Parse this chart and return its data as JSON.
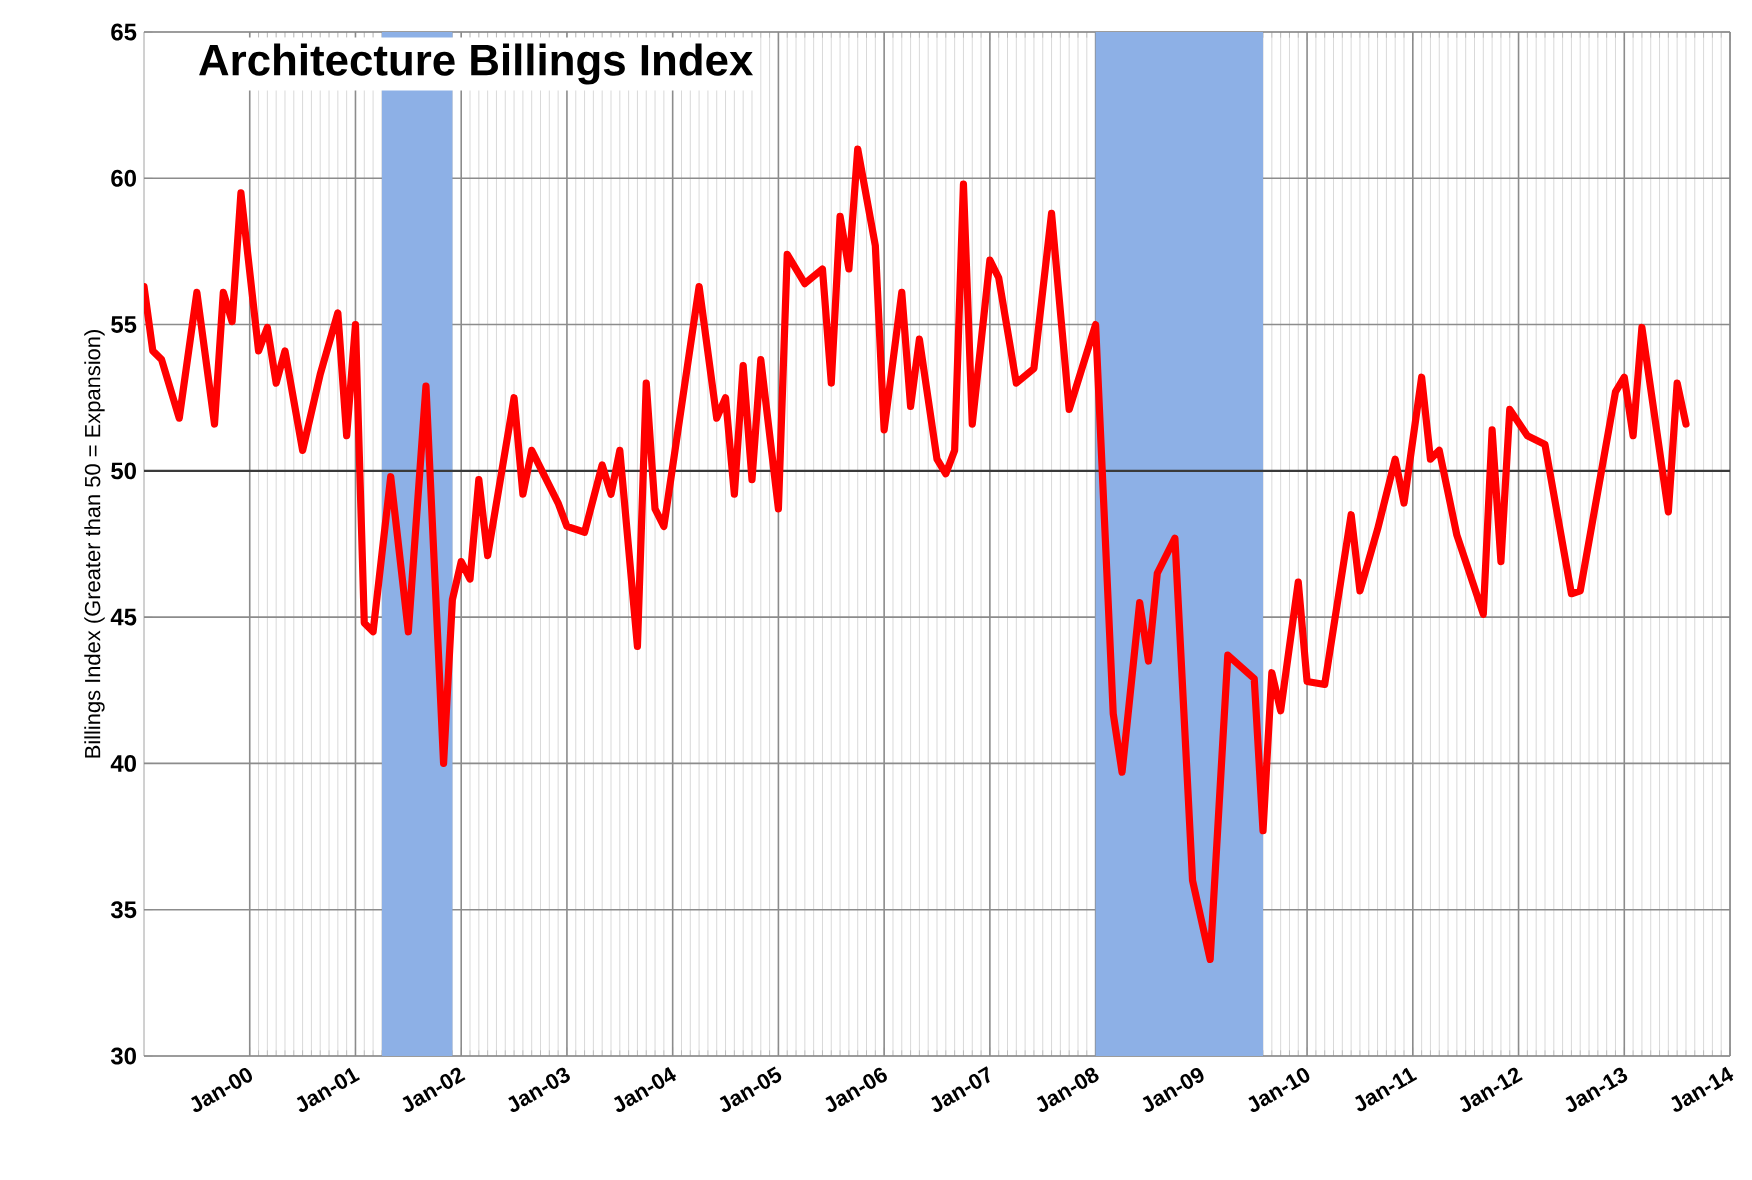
{
  "chart_data": {
    "type": "line",
    "title": "Architecture Billings Index",
    "ylabel": "Billings Index (Greater than 50 = Expansion)",
    "x": [
      "1999-01",
      "1999-02",
      "1999-03",
      "1999-05",
      "1999-07",
      "1999-09",
      "1999-10",
      "1999-11",
      "1999-12",
      "2000-02",
      "2000-03",
      "2000-04",
      "2000-05",
      "2000-07",
      "2000-09",
      "2000-11",
      "2000-12",
      "2001-01",
      "2001-02",
      "2001-03",
      "2001-05",
      "2001-07",
      "2001-09",
      "2001-11",
      "2001-12",
      "2002-01",
      "2002-02",
      "2002-03",
      "2002-04",
      "2002-07",
      "2002-08",
      "2002-09",
      "2002-12",
      "2003-01",
      "2003-03",
      "2003-05",
      "2003-06",
      "2003-07",
      "2003-09",
      "2003-10",
      "2003-11",
      "2003-12",
      "2004-04",
      "2004-06",
      "2004-07",
      "2004-08",
      "2004-09",
      "2004-10",
      "2004-11",
      "2005-01",
      "2005-02",
      "2005-04",
      "2005-06",
      "2005-07",
      "2005-08",
      "2005-09",
      "2005-10",
      "2005-12",
      "2006-01",
      "2006-03",
      "2006-04",
      "2006-05",
      "2006-07",
      "2006-08",
      "2006-09",
      "2006-10",
      "2006-11",
      "2007-01",
      "2007-02",
      "2007-04",
      "2007-06",
      "2007-08",
      "2007-10",
      "2008-01",
      "2008-03",
      "2008-04",
      "2008-06",
      "2008-07",
      "2008-08",
      "2008-10",
      "2008-12",
      "2009-02",
      "2009-04",
      "2009-07",
      "2009-08",
      "2009-09",
      "2009-10",
      "2009-12",
      "2010-01",
      "2010-03",
      "2010-06",
      "2010-07",
      "2010-09",
      "2010-11",
      "2010-12",
      "2011-02",
      "2011-03",
      "2011-04",
      "2011-06",
      "2011-09",
      "2011-10",
      "2011-11",
      "2011-12",
      "2012-02",
      "2012-04",
      "2012-07",
      "2012-08",
      "2012-12",
      "2013-01",
      "2013-02",
      "2013-03",
      "2013-06",
      "2013-07",
      "2013-08"
    ],
    "series": [
      {
        "color": "#ff0000",
        "values": [
          56.3,
          54.1,
          53.8,
          51.8,
          56.1,
          51.6,
          56.1,
          55.1,
          59.5,
          54.1,
          54.9,
          53.0,
          54.1,
          50.7,
          53.3,
          55.4,
          51.2,
          55.0,
          44.8,
          44.5,
          49.8,
          44.5,
          52.9,
          40.0,
          45.6,
          46.9,
          46.3,
          49.7,
          47.1,
          52.5,
          49.2,
          50.7,
          48.9,
          48.1,
          47.9,
          50.2,
          49.2,
          50.7,
          44.0,
          53.0,
          48.7,
          48.1,
          56.3,
          51.8,
          52.5,
          49.2,
          53.6,
          49.7,
          53.8,
          48.7,
          57.4,
          56.4,
          56.9,
          53.0,
          58.7,
          56.9,
          61.0,
          57.7,
          51.4,
          56.1,
          52.2,
          54.5,
          50.4,
          49.9,
          50.7,
          59.8,
          51.6,
          57.2,
          56.6,
          53.0,
          53.5,
          58.8,
          52.1,
          55.0,
          41.7,
          39.7,
          45.5,
          43.5,
          46.5,
          47.7,
          36.0,
          33.3,
          43.7,
          42.9,
          37.7,
          43.1,
          41.8,
          46.2,
          42.8,
          42.7,
          48.5,
          45.9,
          48.0,
          50.4,
          48.9,
          53.2,
          50.4,
          50.7,
          47.8,
          45.1,
          51.4,
          46.9,
          52.1,
          51.2,
          50.9,
          45.8,
          45.9,
          52.7,
          53.2,
          51.2,
          54.9,
          48.6,
          53.0,
          51.6
        ]
      }
    ],
    "xlim": [
      "1999-01",
      "2014-01"
    ],
    "xticks": [
      {
        "value": "2000-01",
        "label": "Jan-00"
      },
      {
        "value": "2001-01",
        "label": "Jan-01"
      },
      {
        "value": "2002-01",
        "label": "Jan-02"
      },
      {
        "value": "2003-01",
        "label": "Jan-03"
      },
      {
        "value": "2004-01",
        "label": "Jan-04"
      },
      {
        "value": "2005-01",
        "label": "Jan-05"
      },
      {
        "value": "2006-01",
        "label": "Jan-06"
      },
      {
        "value": "2007-01",
        "label": "Jan-07"
      },
      {
        "value": "2008-01",
        "label": "Jan-08"
      },
      {
        "value": "2009-01",
        "label": "Jan-09"
      },
      {
        "value": "2010-01",
        "label": "Jan-10"
      },
      {
        "value": "2011-01",
        "label": "Jan-11"
      },
      {
        "value": "2012-01",
        "label": "Jan-12"
      },
      {
        "value": "2013-01",
        "label": "Jan-13"
      },
      {
        "value": "2014-01",
        "label": "Jan-14"
      }
    ],
    "ylim": [
      30,
      65
    ],
    "yticks": [
      30,
      35,
      40,
      45,
      50,
      55,
      60,
      65
    ],
    "grid": true,
    "ref_lines": [
      {
        "axis": "y",
        "value": 50,
        "color": "#3a3a3a"
      }
    ],
    "bands": [
      {
        "axis": "x",
        "from": "2001-04",
        "to": "2001-12",
        "color": "#8db0e6"
      },
      {
        "axis": "x",
        "from": "2008-01",
        "to": "2009-08",
        "color": "#8db0e6"
      }
    ]
  }
}
